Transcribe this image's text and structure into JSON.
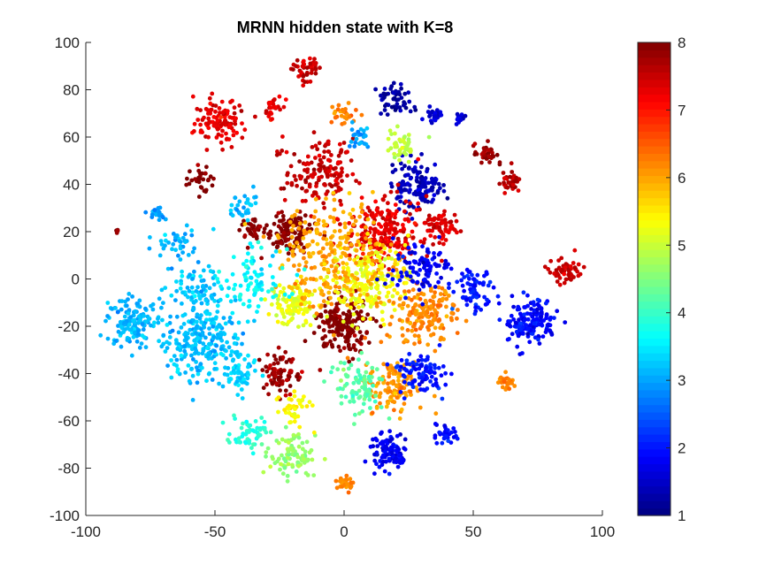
{
  "chart_data": {
    "type": "scatter",
    "title": "MRNN hidden state with K=8",
    "xlabel": "",
    "ylabel": "",
    "xlim": [
      -100,
      100
    ],
    "ylim": [
      -100,
      100
    ],
    "xticks": [
      -100,
      -50,
      0,
      50,
      100
    ],
    "yticks": [
      100,
      80,
      60,
      40,
      20,
      0,
      -20,
      -40,
      -60,
      -80,
      -100
    ],
    "colorbar": {
      "range": [
        1,
        8
      ],
      "ticks": [
        8,
        7,
        6,
        5,
        4,
        3,
        2,
        1
      ],
      "colormap": "jet"
    },
    "clusters": [
      {
        "cx": -15,
        "cy": 89,
        "r": 5,
        "value": 7.5,
        "n": 45
      },
      {
        "cx": -48,
        "cy": 66,
        "r": 9,
        "value": 7.3,
        "n": 110
      },
      {
        "cx": -27,
        "cy": 72,
        "r": 4,
        "value": 7.3,
        "n": 25
      },
      {
        "cx": -55,
        "cy": 42,
        "r": 5,
        "value": 8.0,
        "n": 30
      },
      {
        "cx": -22,
        "cy": 20,
        "r": 8,
        "value": 8.0,
        "n": 110
      },
      {
        "cx": -36,
        "cy": 22,
        "r": 4,
        "value": 8.0,
        "n": 30
      },
      {
        "cx": -73,
        "cy": 28,
        "r": 3,
        "value": 2.9,
        "n": 22
      },
      {
        "cx": -82,
        "cy": -18,
        "r": 9,
        "value": 3.1,
        "n": 140
      },
      {
        "cx": -55,
        "cy": -27,
        "r": 14,
        "value": 3.2,
        "n": 260
      },
      {
        "cx": -57,
        "cy": -5,
        "r": 10,
        "value": 3.2,
        "n": 80
      },
      {
        "cx": -40,
        "cy": -42,
        "r": 6,
        "value": 3.3,
        "n": 50
      },
      {
        "cx": -37,
        "cy": -65,
        "r": 6,
        "value": 3.9,
        "n": 55
      },
      {
        "cx": -20,
        "cy": -75,
        "r": 8,
        "value": 4.6,
        "n": 90
      },
      {
        "cx": 0,
        "cy": -86,
        "r": 3,
        "value": 6.2,
        "n": 25
      },
      {
        "cx": 18,
        "cy": -73,
        "r": 7,
        "value": 1.8,
        "n": 100
      },
      {
        "cx": 40,
        "cy": -66,
        "r": 4,
        "value": 1.9,
        "n": 30
      },
      {
        "cx": 72,
        "cy": -18,
        "r": 9,
        "value": 1.9,
        "n": 150
      },
      {
        "cx": 50,
        "cy": -5,
        "r": 7,
        "value": 2.0,
        "n": 70
      },
      {
        "cx": 63,
        "cy": -44,
        "r": 3,
        "value": 6.2,
        "n": 25
      },
      {
        "cx": 86,
        "cy": 3,
        "r": 5,
        "value": 7.5,
        "n": 55
      },
      {
        "cx": 64,
        "cy": 41,
        "r": 4,
        "value": 7.6,
        "n": 35
      },
      {
        "cx": 55,
        "cy": 53,
        "r": 4,
        "value": 7.8,
        "n": 35
      },
      {
        "cx": 38,
        "cy": 22,
        "r": 6,
        "value": 7.4,
        "n": 60
      },
      {
        "cx": 28,
        "cy": 40,
        "r": 9,
        "value": 1.4,
        "n": 130
      },
      {
        "cx": 20,
        "cy": 76,
        "r": 6,
        "value": 1.2,
        "n": 50
      },
      {
        "cx": 35,
        "cy": 69,
        "r": 3,
        "value": 1.5,
        "n": 25
      },
      {
        "cx": 45,
        "cy": 68,
        "r": 2,
        "value": 1.6,
        "n": 15
      },
      {
        "cx": 0,
        "cy": -20,
        "r": 10,
        "value": 8.0,
        "n": 170
      },
      {
        "cx": 15,
        "cy": 20,
        "r": 13,
        "value": 7.3,
        "n": 220
      },
      {
        "cx": -10,
        "cy": 45,
        "r": 12,
        "value": 7.5,
        "n": 150
      },
      {
        "cx": 10,
        "cy": 0,
        "r": 14,
        "value": 5.3,
        "n": 220
      },
      {
        "cx": -20,
        "cy": -10,
        "r": 8,
        "value": 5.2,
        "n": 110
      },
      {
        "cx": 30,
        "cy": -15,
        "r": 12,
        "value": 6.2,
        "n": 170
      },
      {
        "cx": 20,
        "cy": -45,
        "r": 10,
        "value": 6.1,
        "n": 120
      },
      {
        "cx": 30,
        "cy": -40,
        "r": 8,
        "value": 2.0,
        "n": 90
      },
      {
        "cx": -25,
        "cy": -40,
        "r": 8,
        "value": 7.8,
        "n": 80
      },
      {
        "cx": 5,
        "cy": -45,
        "r": 10,
        "value": 4.2,
        "n": 90
      },
      {
        "cx": -5,
        "cy": 10,
        "r": 20,
        "value": 6.0,
        "n": 250
      },
      {
        "cx": 30,
        "cy": 5,
        "r": 10,
        "value": 1.8,
        "n": 100
      },
      {
        "cx": 0,
        "cy": 70,
        "r": 5,
        "value": 6.2,
        "n": 25
      },
      {
        "cx": 22,
        "cy": 56,
        "r": 6,
        "value": 4.9,
        "n": 45
      },
      {
        "cx": 5,
        "cy": 60,
        "r": 5,
        "value": 3.0,
        "n": 25
      },
      {
        "cx": -88,
        "cy": 20,
        "r": 1,
        "value": 8.0,
        "n": 4
      },
      {
        "cx": -35,
        "cy": 0,
        "r": 12,
        "value": 3.6,
        "n": 90
      },
      {
        "cx": -65,
        "cy": 15,
        "r": 8,
        "value": 3.1,
        "n": 40
      },
      {
        "cx": -40,
        "cy": 30,
        "r": 6,
        "value": 3.2,
        "n": 30
      },
      {
        "cx": -20,
        "cy": -55,
        "r": 6,
        "value": 5.4,
        "n": 40
      }
    ]
  }
}
